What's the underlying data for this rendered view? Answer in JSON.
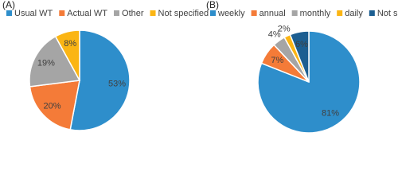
{
  "chart_data": [
    {
      "type": "pie",
      "title": "(A)",
      "categories": [
        "Usual WT",
        "Actual WT",
        "Other",
        "Not specified"
      ],
      "values": [
        53,
        20,
        19,
        8
      ],
      "value_labels": [
        "53%",
        "20%",
        "19%",
        "8%"
      ],
      "colors": [
        "#2e8ecb",
        "#f47b38",
        "#a5a5a5",
        "#fbb514"
      ],
      "legend": "top"
    },
    {
      "type": "pie",
      "title": "(B)",
      "categories": [
        "weekly",
        "annual",
        "monthly",
        "daily",
        "Not specified"
      ],
      "values": [
        81,
        7,
        4,
        2,
        6
      ],
      "value_labels": [
        "81%",
        "7%",
        "4%",
        "2%",
        "6%"
      ],
      "colors": [
        "#2e8ecb",
        "#f47b38",
        "#a5a5a5",
        "#fbb514",
        "#1c5e91"
      ],
      "legend": "top"
    }
  ]
}
